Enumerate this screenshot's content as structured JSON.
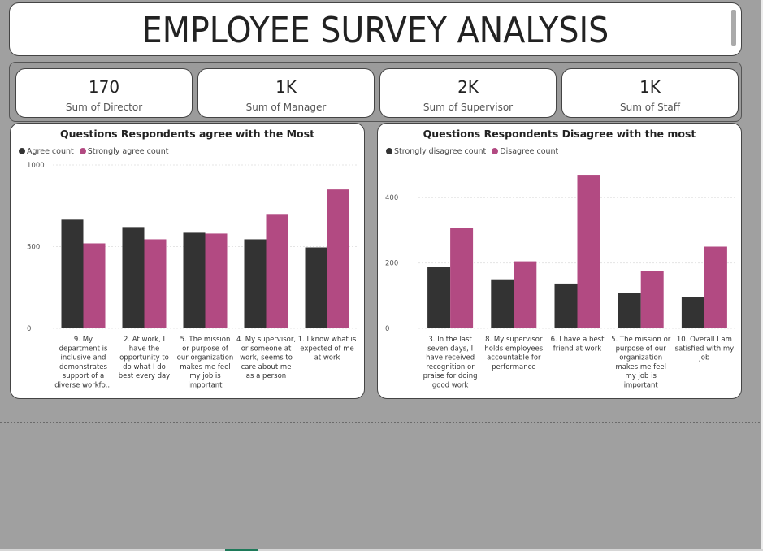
{
  "title": "EMPLOYEE SURVEY ANALYSIS",
  "kpis": [
    {
      "value": "170",
      "label": "Sum of Director"
    },
    {
      "value": "1K",
      "label": "Sum of Manager"
    },
    {
      "value": "2K",
      "label": "Sum of Supervisor"
    },
    {
      "value": "1K",
      "label": "Sum of Staff"
    }
  ],
  "colors": {
    "dark": "#333333",
    "pink": "#b24a82"
  },
  "chart_data": [
    {
      "type": "bar",
      "title": "Questions Respondents agree with the Most",
      "categories": [
        "9. My department is inclusive and demonstrates support of a diverse workfo...",
        "2. At work, I have the opportunity to do what I do best every day",
        "5. The mission or purpose of our organization makes me feel my job is important",
        "4. My supervisor, or someone at work, seems to care about me as a person",
        "1. I know what is expected of me at work"
      ],
      "category_lines": [
        [
          "9. My",
          "department is",
          "inclusive and",
          "demonstrates",
          "support of a",
          "diverse workfo..."
        ],
        [
          "2. At work, I",
          "have the",
          "opportunity to",
          "do what I do",
          "best every day"
        ],
        [
          "5. The mission",
          "or purpose of",
          "our organization",
          "makes me feel",
          "my job is",
          "important"
        ],
        [
          "4. My supervisor,",
          "or someone at",
          "work, seems to",
          "care about me",
          "as a person"
        ],
        [
          "1. I know what is",
          "expected of me",
          "at work"
        ]
      ],
      "series": [
        {
          "name": "Agree count",
          "color": "#333333",
          "values": [
            665,
            620,
            585,
            545,
            495
          ]
        },
        {
          "name": "Strongly agree count",
          "color": "#b24a82",
          "values": [
            520,
            545,
            580,
            700,
            850
          ]
        }
      ],
      "ylim": [
        0,
        1000
      ],
      "yticks": [
        0,
        500,
        1000
      ],
      "legend": "top-left"
    },
    {
      "type": "bar",
      "title": "Questions Respondents Disagree with the most",
      "categories": [
        "3. In the last seven days, I have received recognition or praise for doing good work",
        "8. My supervisor holds employees accountable for performance",
        "6. I have a best friend at work",
        "5. The mission or purpose of our organization makes me feel my job is important",
        "10. Overall I am satisfied with my job"
      ],
      "category_lines": [
        [
          "3. In the last",
          "seven days, I",
          "have received",
          "recognition or",
          "praise for doing",
          "good work"
        ],
        [
          "8. My supervisor",
          "holds employees",
          "accountable for",
          "performance"
        ],
        [
          "6. I have a best",
          "friend at work"
        ],
        [
          "5. The mission or",
          "purpose of our",
          "organization",
          "makes me feel",
          "my job is",
          "important"
        ],
        [
          "10. Overall I am",
          "satisfied with my",
          "job"
        ]
      ],
      "series": [
        {
          "name": "Strongly disagree count",
          "color": "#333333",
          "values": [
            188,
            150,
            137,
            107,
            95
          ]
        },
        {
          "name": "Disagree count",
          "color": "#b24a82",
          "values": [
            307,
            205,
            470,
            175,
            250
          ]
        }
      ],
      "ylim": [
        0,
        500
      ],
      "yticks": [
        0,
        200,
        400
      ],
      "legend": "top-left"
    }
  ]
}
